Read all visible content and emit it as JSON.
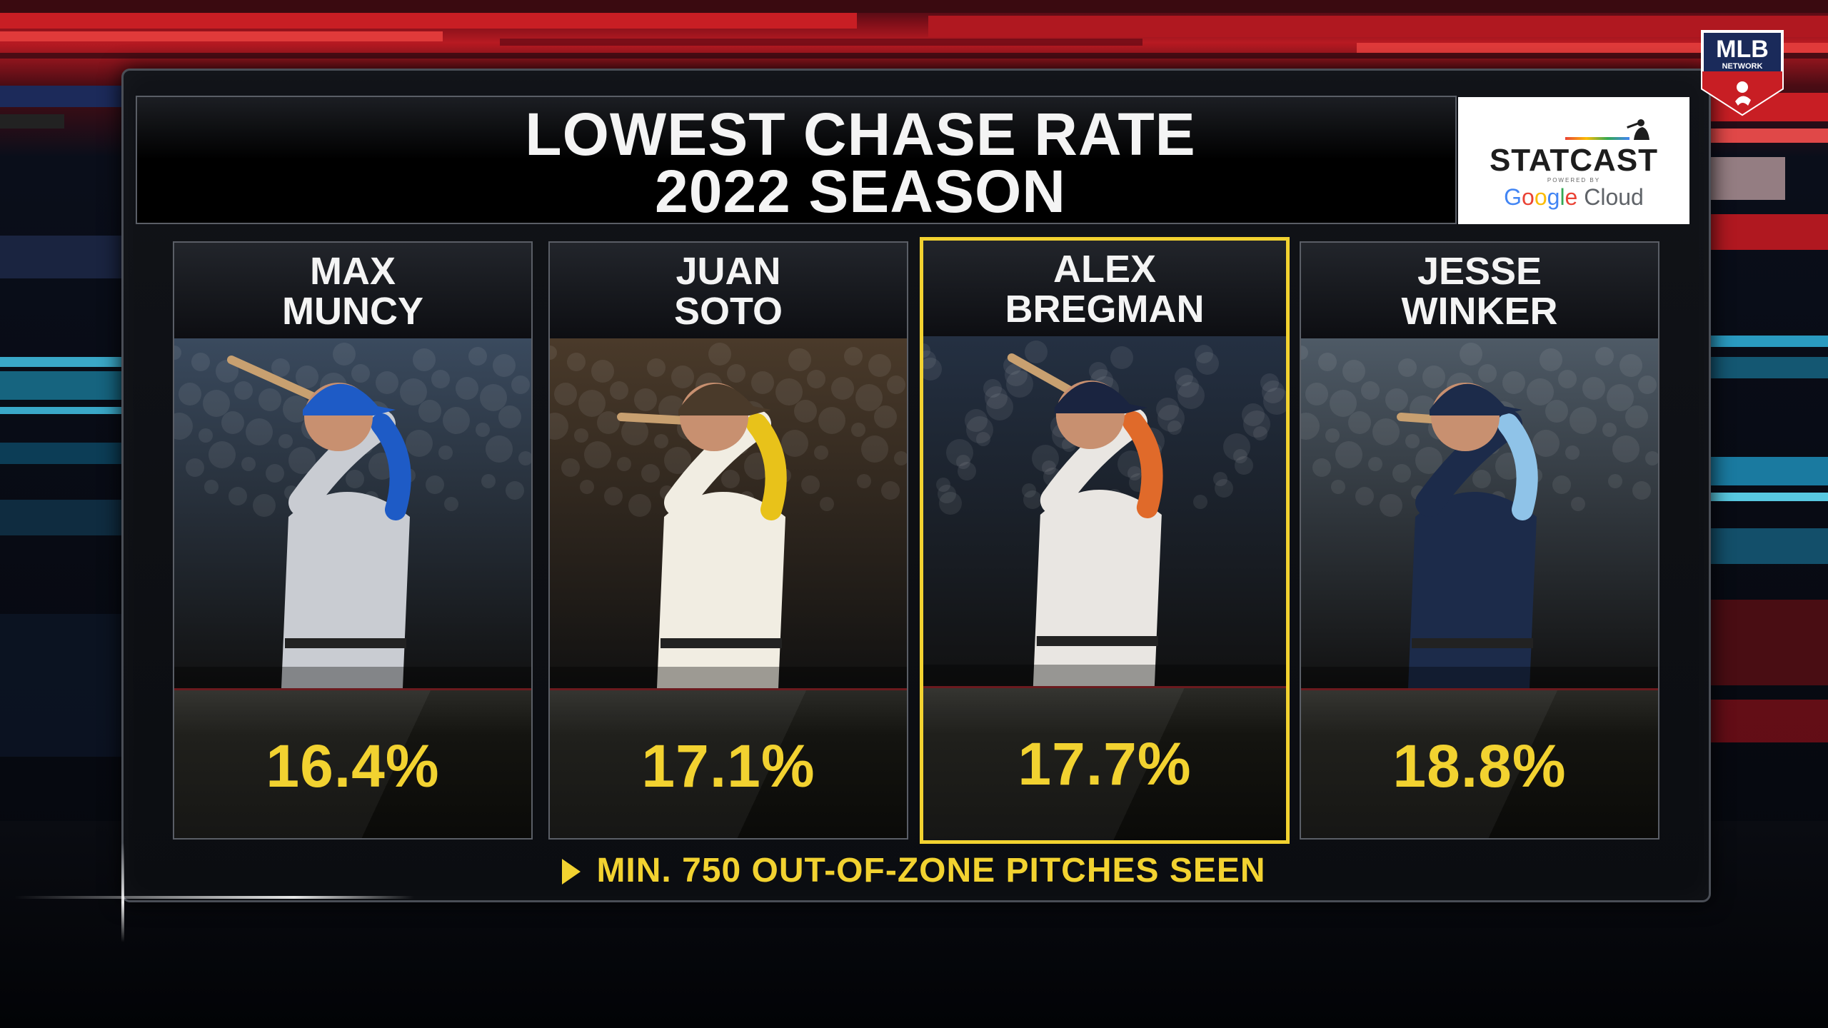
{
  "title": {
    "line1": "LOWEST CHASE RATE",
    "line2": "2022 SEASON"
  },
  "sponsor": {
    "brand": "STATCAST",
    "powered_by": "POWERED BY",
    "google_parts": [
      "G",
      "o",
      "o",
      "g",
      "l",
      "e"
    ],
    "cloud": "Cloud"
  },
  "network_logo": {
    "text1": "MLB",
    "text2": "NETWORK"
  },
  "players": [
    {
      "first": "MAX",
      "last": "MUNCY",
      "chase_rate": "16.4%",
      "highlight": false,
      "uniform": "#c9ccd2",
      "accent": "#1e5bc6",
      "bg": "#3a4a5e"
    },
    {
      "first": "JUAN",
      "last": "SOTO",
      "chase_rate": "17.1%",
      "highlight": false,
      "uniform": "#f1ede2",
      "accent": "#e8c21a",
      "bg": "#4a3a2a"
    },
    {
      "first": "ALEX",
      "last": "BREGMAN",
      "chase_rate": "17.7%",
      "highlight": true,
      "uniform": "#e9e6e2",
      "accent": "#e06a2a",
      "bg": "#243042"
    },
    {
      "first": "JESSE",
      "last": "WINKER",
      "chase_rate": "18.8%",
      "highlight": false,
      "uniform": "#1c2b4a",
      "accent": "#8fc3e8",
      "bg": "#4e5a66"
    }
  ],
  "footnote": "MIN. 750 OUT-OF-ZONE PITCHES SEEN",
  "colors": {
    "accent_yellow": "#f2d230",
    "title_white": "#f4f4f4",
    "background_red": "#b81a22"
  }
}
